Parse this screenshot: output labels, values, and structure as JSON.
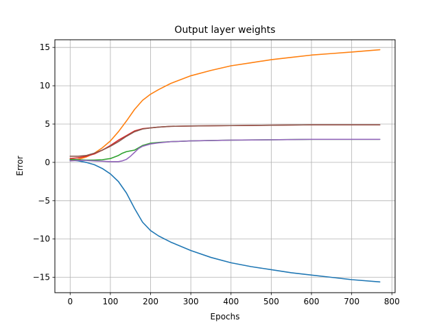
{
  "chart_data": {
    "type": "line",
    "title": "Output layer weights",
    "xlabel": "Epochs",
    "ylabel": "Error",
    "xlim": [
      -38,
      808
    ],
    "ylim": [
      -17,
      16
    ],
    "xticks": [
      0,
      100,
      200,
      300,
      400,
      500,
      600,
      700,
      800
    ],
    "yticks": [
      -15,
      -10,
      -5,
      0,
      5,
      10,
      15
    ],
    "grid": true,
    "legend": "none",
    "series": [
      {
        "color": "#1f77b4",
        "x": [
          0,
          20,
          40,
          60,
          80,
          100,
          120,
          140,
          160,
          180,
          200,
          220,
          250,
          300,
          350,
          400,
          450,
          500,
          550,
          600,
          650,
          700,
          770
        ],
        "y": [
          0.3,
          0.2,
          0.0,
          -0.3,
          -0.8,
          -1.5,
          -2.5,
          -4.0,
          -6.0,
          -7.8,
          -8.9,
          -9.6,
          -10.4,
          -11.5,
          -12.4,
          -13.1,
          -13.6,
          -14.0,
          -14.4,
          -14.7,
          -15.0,
          -15.3,
          -15.6
        ]
      },
      {
        "color": "#ff7f0e",
        "x": [
          0,
          20,
          40,
          60,
          80,
          100,
          120,
          140,
          160,
          180,
          200,
          220,
          250,
          300,
          350,
          400,
          450,
          500,
          550,
          600,
          650,
          700,
          770
        ],
        "y": [
          0.2,
          0.4,
          0.7,
          1.2,
          1.9,
          2.8,
          4.0,
          5.4,
          6.9,
          8.1,
          8.9,
          9.5,
          10.3,
          11.3,
          12.0,
          12.6,
          13.0,
          13.4,
          13.7,
          14.0,
          14.2,
          14.4,
          14.7
        ]
      },
      {
        "color": "#2ca02c",
        "x": [
          0,
          20,
          40,
          60,
          80,
          100,
          110,
          120,
          130,
          140,
          150,
          160,
          170,
          180,
          200,
          220,
          250,
          300,
          400,
          500,
          600,
          700,
          770
        ],
        "y": [
          0.4,
          0.35,
          0.3,
          0.3,
          0.35,
          0.5,
          0.7,
          0.9,
          1.2,
          1.4,
          1.5,
          1.6,
          1.9,
          2.2,
          2.5,
          2.6,
          2.7,
          2.8,
          2.9,
          2.95,
          3.0,
          3.0,
          3.0
        ]
      },
      {
        "color": "#d62728",
        "x": [
          0,
          20,
          40,
          60,
          80,
          100,
          120,
          140,
          160,
          180,
          200,
          220,
          250,
          300,
          400,
          500,
          600,
          700,
          770
        ],
        "y": [
          0.5,
          0.6,
          0.8,
          1.1,
          1.6,
          2.2,
          2.9,
          3.5,
          4.1,
          4.4,
          4.5,
          4.6,
          4.7,
          4.75,
          4.8,
          4.85,
          4.9,
          4.9,
          4.9
        ]
      },
      {
        "color": "#9467bd",
        "x": [
          0,
          20,
          40,
          60,
          80,
          100,
          110,
          120,
          130,
          140,
          150,
          160,
          170,
          180,
          200,
          220,
          250,
          300,
          400,
          500,
          600,
          700,
          770
        ],
        "y": [
          0.2,
          0.25,
          0.25,
          0.2,
          0.15,
          0.1,
          0.1,
          0.1,
          0.2,
          0.4,
          0.8,
          1.3,
          1.8,
          2.1,
          2.4,
          2.55,
          2.7,
          2.8,
          2.9,
          2.95,
          3.0,
          3.0,
          3.0
        ]
      },
      {
        "color": "#8c564b",
        "x": [
          0,
          20,
          40,
          60,
          80,
          100,
          120,
          140,
          160,
          180,
          200,
          220,
          250,
          300,
          400,
          500,
          600,
          700,
          770
        ],
        "y": [
          0.8,
          0.8,
          0.9,
          1.2,
          1.6,
          2.1,
          2.7,
          3.4,
          4.0,
          4.35,
          4.5,
          4.6,
          4.7,
          4.75,
          4.8,
          4.85,
          4.9,
          4.9,
          4.9
        ]
      }
    ]
  }
}
